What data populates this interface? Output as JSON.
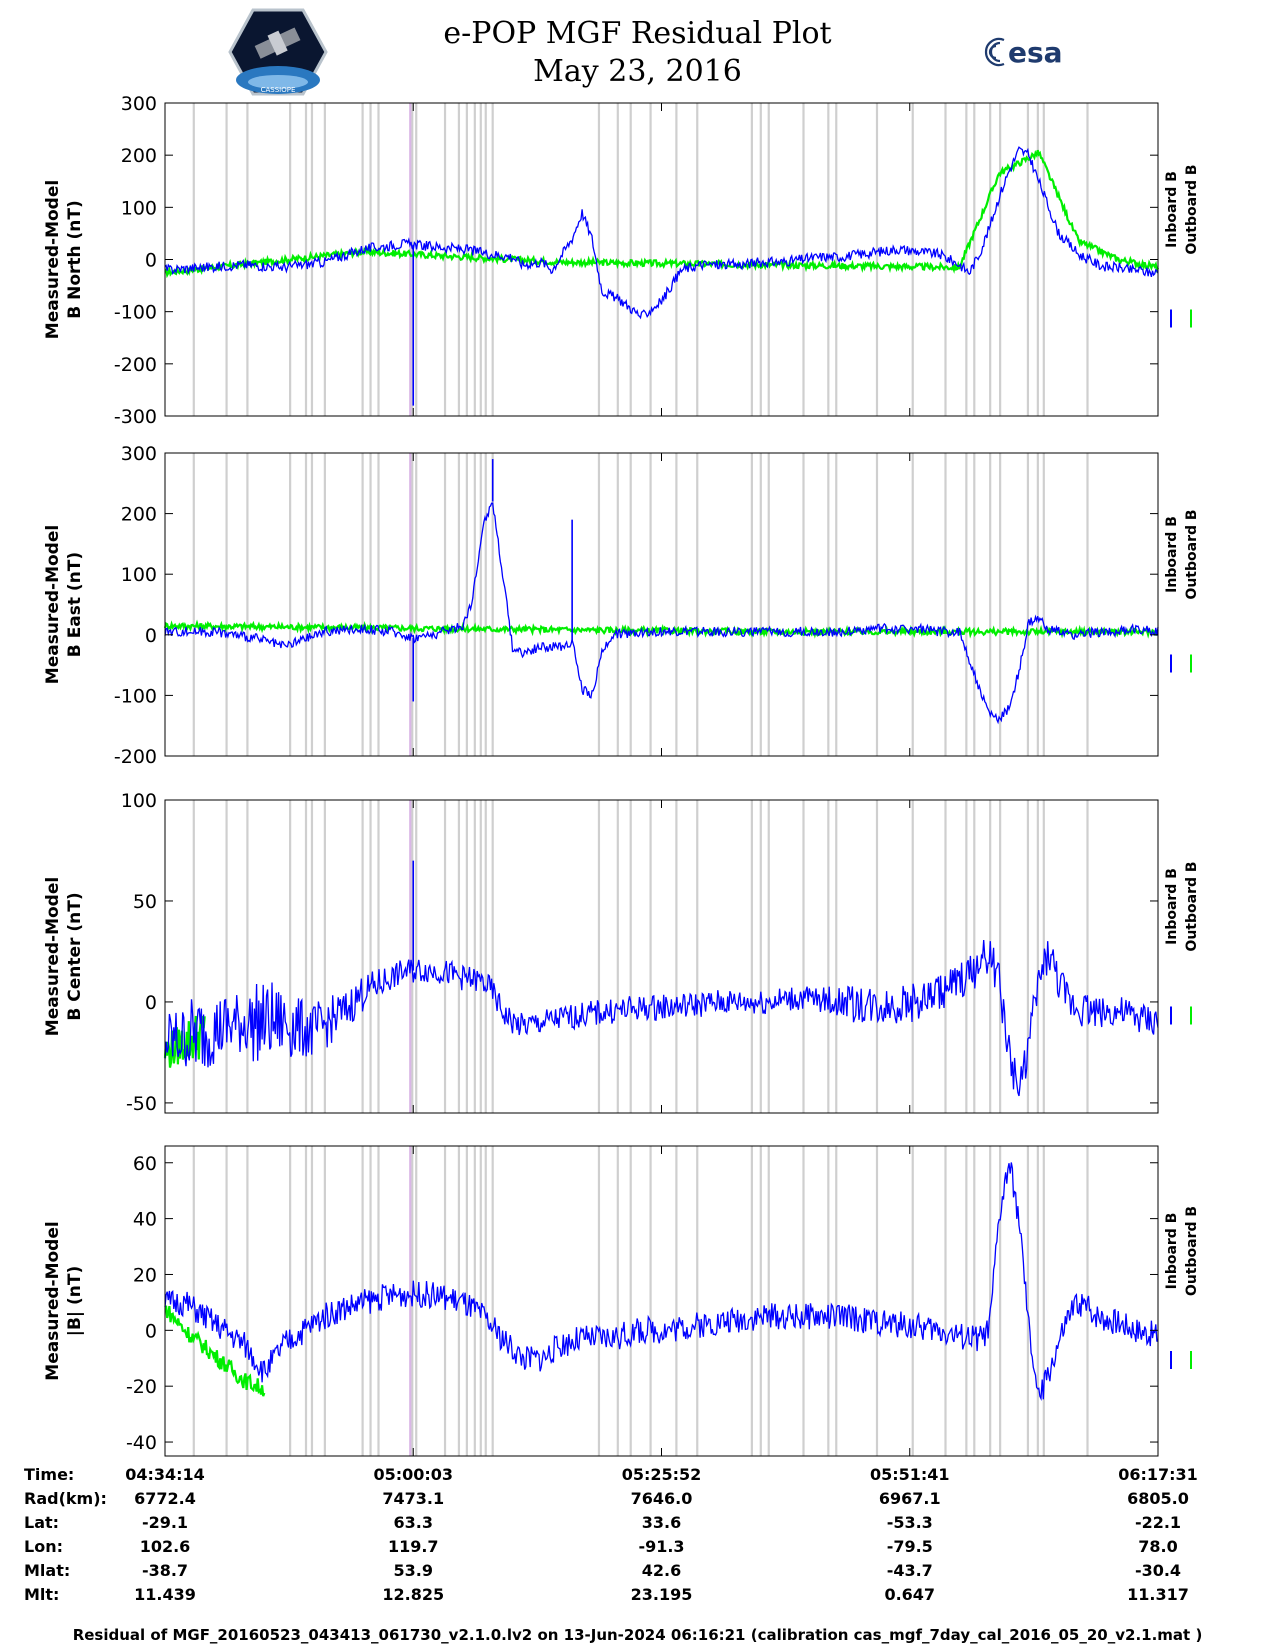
{
  "header": {
    "title": "e-POP MGF Residual Plot",
    "date": "May 23, 2016",
    "esa_logo_text": "esa",
    "epop_logo_text": "CASSIOPE"
  },
  "colors": {
    "inboard": "#0000ff",
    "outboard": "#00ee00",
    "gap": "#cfcfcf",
    "gap_special": "#d9b6e6"
  },
  "chart_data": [
    {
      "type": "line",
      "ylabel": "Measured-Model\nB North (nT)",
      "ylim": [
        -300,
        300
      ],
      "yticks": [
        300,
        200,
        100,
        0,
        -100,
        -200,
        -300
      ],
      "legend": [
        "Inboard B",
        "Outboard B"
      ],
      "series": [
        {
          "name": "Inboard B",
          "x": [
            0,
            4,
            8,
            12,
            16,
            20,
            24,
            27,
            30,
            33,
            35,
            36,
            38,
            39,
            40,
            41,
            42,
            43,
            44,
            45,
            46,
            47,
            48,
            50,
            52,
            54,
            56,
            58,
            60,
            62,
            64,
            66,
            68,
            70,
            72,
            74,
            76,
            78,
            80,
            81,
            82,
            83,
            84,
            85,
            86,
            87,
            88,
            89,
            90,
            91,
            92,
            93,
            94,
            95,
            96,
            97,
            98,
            99,
            100
          ],
          "y": [
            -20,
            -15,
            -10,
            -15,
            -5,
            20,
            30,
            25,
            20,
            10,
            5,
            -10,
            -5,
            -20,
            10,
            40,
            90,
            40,
            -60,
            -70,
            -80,
            -95,
            -110,
            -80,
            -20,
            -10,
            -10,
            -10,
            -5,
            -5,
            0,
            5,
            5,
            10,
            15,
            20,
            15,
            10,
            -10,
            -25,
            10,
            60,
            120,
            170,
            210,
            200,
            150,
            100,
            50,
            30,
            10,
            0,
            -10,
            -15,
            -15,
            -20,
            -20,
            -25,
            -25
          ]
        },
        {
          "name": "Outboard B",
          "x": [
            0,
            20,
            40,
            80,
            84,
            88,
            92,
            96,
            100
          ],
          "y": [
            -25,
            15,
            -5,
            -15,
            165,
            205,
            35,
            0,
            -15
          ]
        }
      ],
      "spikes": [
        {
          "x": 25,
          "y": -280
        }
      ]
    },
    {
      "type": "line",
      "ylabel": "Measured-Model\nB East (nT)",
      "ylim": [
        -200,
        300
      ],
      "yticks": [
        300,
        200,
        100,
        0,
        -100,
        -200
      ],
      "legend": [
        "Inboard B",
        "Outboard B"
      ],
      "series": [
        {
          "name": "Inboard B",
          "x": [
            0,
            5,
            9,
            12,
            16,
            20,
            23,
            25,
            27,
            29,
            30,
            31,
            32,
            33,
            34,
            35,
            36,
            38,
            40,
            41,
            42,
            43,
            44,
            45,
            48,
            52,
            56,
            60,
            64,
            68,
            72,
            74,
            76,
            78,
            80,
            81,
            82,
            83,
            84,
            85,
            86,
            87,
            88,
            89,
            90,
            91,
            92,
            94,
            96,
            98,
            100
          ],
          "y": [
            5,
            5,
            -5,
            -20,
            5,
            10,
            5,
            -5,
            0,
            10,
            15,
            60,
            180,
            220,
            100,
            -20,
            -30,
            -20,
            -20,
            -10,
            -90,
            -100,
            -30,
            0,
            5,
            5,
            5,
            5,
            5,
            5,
            10,
            10,
            10,
            5,
            5,
            -40,
            -90,
            -130,
            -140,
            -120,
            -60,
            20,
            25,
            10,
            5,
            0,
            0,
            5,
            5,
            10,
            5
          ]
        },
        {
          "name": "Outboard B",
          "x": [
            0,
            30,
            60,
            90,
            100
          ],
          "y": [
            15,
            10,
            5,
            5,
            5
          ]
        }
      ],
      "spikes": [
        {
          "x": 25,
          "y": -110
        },
        {
          "x": 33,
          "y": 290
        },
        {
          "x": 41,
          "y": 190
        }
      ]
    },
    {
      "type": "line",
      "ylabel": "Measured-Model\nB Center (nT)",
      "ylim": [
        -55,
        100
      ],
      "yticks": [
        100,
        50,
        0,
        -50
      ],
      "legend": [
        "Inboard B",
        "Outboard B"
      ],
      "series": [
        {
          "name": "Inboard B",
          "x": [
            0,
            4,
            8,
            12,
            15,
            18,
            20,
            22,
            24,
            26,
            28,
            30,
            32,
            33,
            34,
            35,
            36,
            38,
            40,
            44,
            48,
            52,
            56,
            60,
            64,
            68,
            72,
            76,
            80,
            82,
            83,
            84,
            85,
            86,
            87,
            88,
            89,
            90,
            91,
            92,
            94,
            96,
            98,
            100
          ],
          "y": [
            -20,
            -15,
            -10,
            -10,
            -15,
            -5,
            5,
            10,
            15,
            16,
            15,
            12,
            10,
            5,
            -5,
            -10,
            -12,
            -10,
            -8,
            -5,
            -3,
            -2,
            0,
            0,
            2,
            0,
            -2,
            0,
            10,
            18,
            25,
            10,
            -25,
            -45,
            -20,
            10,
            25,
            10,
            0,
            -2,
            -5,
            -5,
            -8,
            -10
          ]
        },
        {
          "name": "Outboard B",
          "x": [
            0,
            2,
            4
          ],
          "y": [
            -25,
            -20,
            -15
          ]
        }
      ],
      "spikes": [
        {
          "x": 25,
          "y": 70
        }
      ],
      "noise": [
        20,
        25,
        22,
        20,
        25,
        22,
        18,
        15,
        12,
        10,
        8,
        8,
        8,
        8,
        8,
        8,
        8,
        8,
        8,
        8,
        8,
        8,
        8,
        8,
        8,
        8,
        8,
        8,
        8,
        8,
        10,
        12,
        12,
        12,
        12,
        12,
        12,
        12,
        12,
        12,
        12,
        12,
        10,
        10,
        10
      ]
    },
    {
      "type": "line",
      "ylabel": "Measured-Model\n|B| (nT)",
      "ylim": [
        -45,
        66
      ],
      "yticks": [
        60,
        40,
        20,
        0,
        -20,
        -40
      ],
      "legend": [
        "Inboard B",
        "Outboard B"
      ],
      "series": [
        {
          "name": "Inboard B",
          "x": [
            0,
            2,
            4,
            6,
            8,
            10,
            12,
            14,
            16,
            18,
            20,
            22,
            24,
            26,
            28,
            30,
            32,
            34,
            36,
            38,
            40,
            42,
            44,
            46,
            48,
            50,
            52,
            54,
            56,
            58,
            60,
            62,
            64,
            66,
            68,
            70,
            72,
            74,
            76,
            78,
            80,
            82,
            83,
            84,
            85,
            86,
            87,
            88,
            89,
            90,
            91,
            92,
            93,
            94,
            96,
            98,
            100
          ],
          "y": [
            10,
            10,
            5,
            0,
            -5,
            -15,
            -5,
            0,
            5,
            8,
            10,
            12,
            13,
            13,
            12,
            10,
            5,
            -3,
            -10,
            -10,
            -5,
            -3,
            -3,
            -2,
            0,
            0,
            1,
            2,
            3,
            4,
            5,
            5,
            5,
            5,
            5,
            4,
            3,
            2,
            1,
            0,
            -2,
            -3,
            0,
            40,
            60,
            40,
            0,
            -25,
            -15,
            -5,
            5,
            10,
            8,
            5,
            3,
            0,
            -2
          ]
        },
        {
          "name": "Outboard B",
          "x": [
            0,
            2,
            4,
            6,
            8,
            10
          ],
          "y": [
            8,
            0,
            -6,
            -12,
            -18,
            -21
          ]
        }
      ],
      "noise": [
        6,
        6,
        6,
        6,
        6,
        6,
        6,
        6,
        6,
        6,
        6,
        6,
        6,
        6,
        6,
        6,
        6,
        6,
        6,
        6,
        6,
        6,
        6,
        6,
        6,
        6,
        6,
        6,
        6,
        6,
        6,
        6,
        6,
        6,
        6,
        6,
        6,
        6,
        6,
        6,
        6,
        6,
        6,
        6,
        6,
        6,
        6,
        6,
        6,
        6,
        6,
        6,
        6,
        6,
        6
      ]
    }
  ],
  "info_table": {
    "labels": [
      "Time:",
      "Rad(km):",
      "Lat:",
      "Lon:",
      "Mlat:",
      "Mlt:"
    ],
    "columns": [
      {
        "pos": 0,
        "values": [
          "04:34:14",
          "6772.4",
          "-29.1",
          "102.6",
          "-38.7",
          "11.439"
        ]
      },
      {
        "pos": 25,
        "values": [
          "05:00:03",
          "7473.1",
          "63.3",
          "119.7",
          "53.9",
          "12.825"
        ]
      },
      {
        "pos": 50,
        "values": [
          "05:25:52",
          "7646.0",
          "33.6",
          "-91.3",
          "42.6",
          "23.195"
        ]
      },
      {
        "pos": 75,
        "values": [
          "05:51:41",
          "6967.1",
          "-53.3",
          "-79.5",
          "-43.7",
          "0.647"
        ]
      },
      {
        "pos": 100,
        "values": [
          "06:17:31",
          "6805.0",
          "-22.1",
          "78.0",
          "-30.4",
          "11.317"
        ]
      }
    ]
  },
  "footer": "Residual of MGF_20160523_043413_061730_v2.1.0.lv2 on 13-Jun-2024 06:16:21 (calibration cas_mgf_7day_cal_2016_05_20_v2.1.mat )"
}
